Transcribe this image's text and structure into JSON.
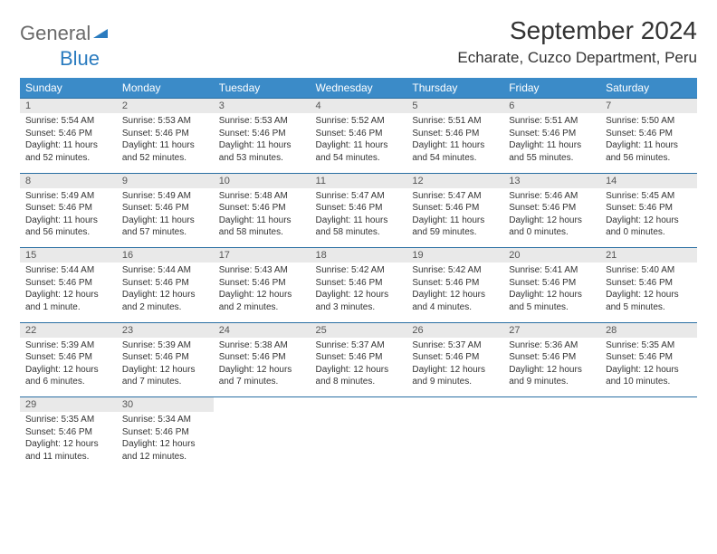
{
  "logo": {
    "text1": "General",
    "text2": "Blue"
  },
  "title": "September 2024",
  "location": "Echarate, Cuzco Department, Peru",
  "colors": {
    "header_bg": "#3b8bc8",
    "header_text": "#ffffff",
    "daynum_bg": "#e9e9e9",
    "row_border": "#2a6fa3",
    "logo_gray": "#6a6a6a",
    "logo_blue": "#2a7bbf"
  },
  "weekdays": [
    "Sunday",
    "Monday",
    "Tuesday",
    "Wednesday",
    "Thursday",
    "Friday",
    "Saturday"
  ],
  "weeks": [
    [
      {
        "n": "1",
        "sr": "5:54 AM",
        "ss": "5:46 PM",
        "dl": "11 hours and 52 minutes."
      },
      {
        "n": "2",
        "sr": "5:53 AM",
        "ss": "5:46 PM",
        "dl": "11 hours and 52 minutes."
      },
      {
        "n": "3",
        "sr": "5:53 AM",
        "ss": "5:46 PM",
        "dl": "11 hours and 53 minutes."
      },
      {
        "n": "4",
        "sr": "5:52 AM",
        "ss": "5:46 PM",
        "dl": "11 hours and 54 minutes."
      },
      {
        "n": "5",
        "sr": "5:51 AM",
        "ss": "5:46 PM",
        "dl": "11 hours and 54 minutes."
      },
      {
        "n": "6",
        "sr": "5:51 AM",
        "ss": "5:46 PM",
        "dl": "11 hours and 55 minutes."
      },
      {
        "n": "7",
        "sr": "5:50 AM",
        "ss": "5:46 PM",
        "dl": "11 hours and 56 minutes."
      }
    ],
    [
      {
        "n": "8",
        "sr": "5:49 AM",
        "ss": "5:46 PM",
        "dl": "11 hours and 56 minutes."
      },
      {
        "n": "9",
        "sr": "5:49 AM",
        "ss": "5:46 PM",
        "dl": "11 hours and 57 minutes."
      },
      {
        "n": "10",
        "sr": "5:48 AM",
        "ss": "5:46 PM",
        "dl": "11 hours and 58 minutes."
      },
      {
        "n": "11",
        "sr": "5:47 AM",
        "ss": "5:46 PM",
        "dl": "11 hours and 58 minutes."
      },
      {
        "n": "12",
        "sr": "5:47 AM",
        "ss": "5:46 PM",
        "dl": "11 hours and 59 minutes."
      },
      {
        "n": "13",
        "sr": "5:46 AM",
        "ss": "5:46 PM",
        "dl": "12 hours and 0 minutes."
      },
      {
        "n": "14",
        "sr": "5:45 AM",
        "ss": "5:46 PM",
        "dl": "12 hours and 0 minutes."
      }
    ],
    [
      {
        "n": "15",
        "sr": "5:44 AM",
        "ss": "5:46 PM",
        "dl": "12 hours and 1 minute."
      },
      {
        "n": "16",
        "sr": "5:44 AM",
        "ss": "5:46 PM",
        "dl": "12 hours and 2 minutes."
      },
      {
        "n": "17",
        "sr": "5:43 AM",
        "ss": "5:46 PM",
        "dl": "12 hours and 2 minutes."
      },
      {
        "n": "18",
        "sr": "5:42 AM",
        "ss": "5:46 PM",
        "dl": "12 hours and 3 minutes."
      },
      {
        "n": "19",
        "sr": "5:42 AM",
        "ss": "5:46 PM",
        "dl": "12 hours and 4 minutes."
      },
      {
        "n": "20",
        "sr": "5:41 AM",
        "ss": "5:46 PM",
        "dl": "12 hours and 5 minutes."
      },
      {
        "n": "21",
        "sr": "5:40 AM",
        "ss": "5:46 PM",
        "dl": "12 hours and 5 minutes."
      }
    ],
    [
      {
        "n": "22",
        "sr": "5:39 AM",
        "ss": "5:46 PM",
        "dl": "12 hours and 6 minutes."
      },
      {
        "n": "23",
        "sr": "5:39 AM",
        "ss": "5:46 PM",
        "dl": "12 hours and 7 minutes."
      },
      {
        "n": "24",
        "sr": "5:38 AM",
        "ss": "5:46 PM",
        "dl": "12 hours and 7 minutes."
      },
      {
        "n": "25",
        "sr": "5:37 AM",
        "ss": "5:46 PM",
        "dl": "12 hours and 8 minutes."
      },
      {
        "n": "26",
        "sr": "5:37 AM",
        "ss": "5:46 PM",
        "dl": "12 hours and 9 minutes."
      },
      {
        "n": "27",
        "sr": "5:36 AM",
        "ss": "5:46 PM",
        "dl": "12 hours and 9 minutes."
      },
      {
        "n": "28",
        "sr": "5:35 AM",
        "ss": "5:46 PM",
        "dl": "12 hours and 10 minutes."
      }
    ],
    [
      {
        "n": "29",
        "sr": "5:35 AM",
        "ss": "5:46 PM",
        "dl": "12 hours and 11 minutes."
      },
      {
        "n": "30",
        "sr": "5:34 AM",
        "ss": "5:46 PM",
        "dl": "12 hours and 12 minutes."
      },
      null,
      null,
      null,
      null,
      null
    ]
  ],
  "labels": {
    "sunrise": "Sunrise: ",
    "sunset": "Sunset: ",
    "daylight": "Daylight: "
  }
}
